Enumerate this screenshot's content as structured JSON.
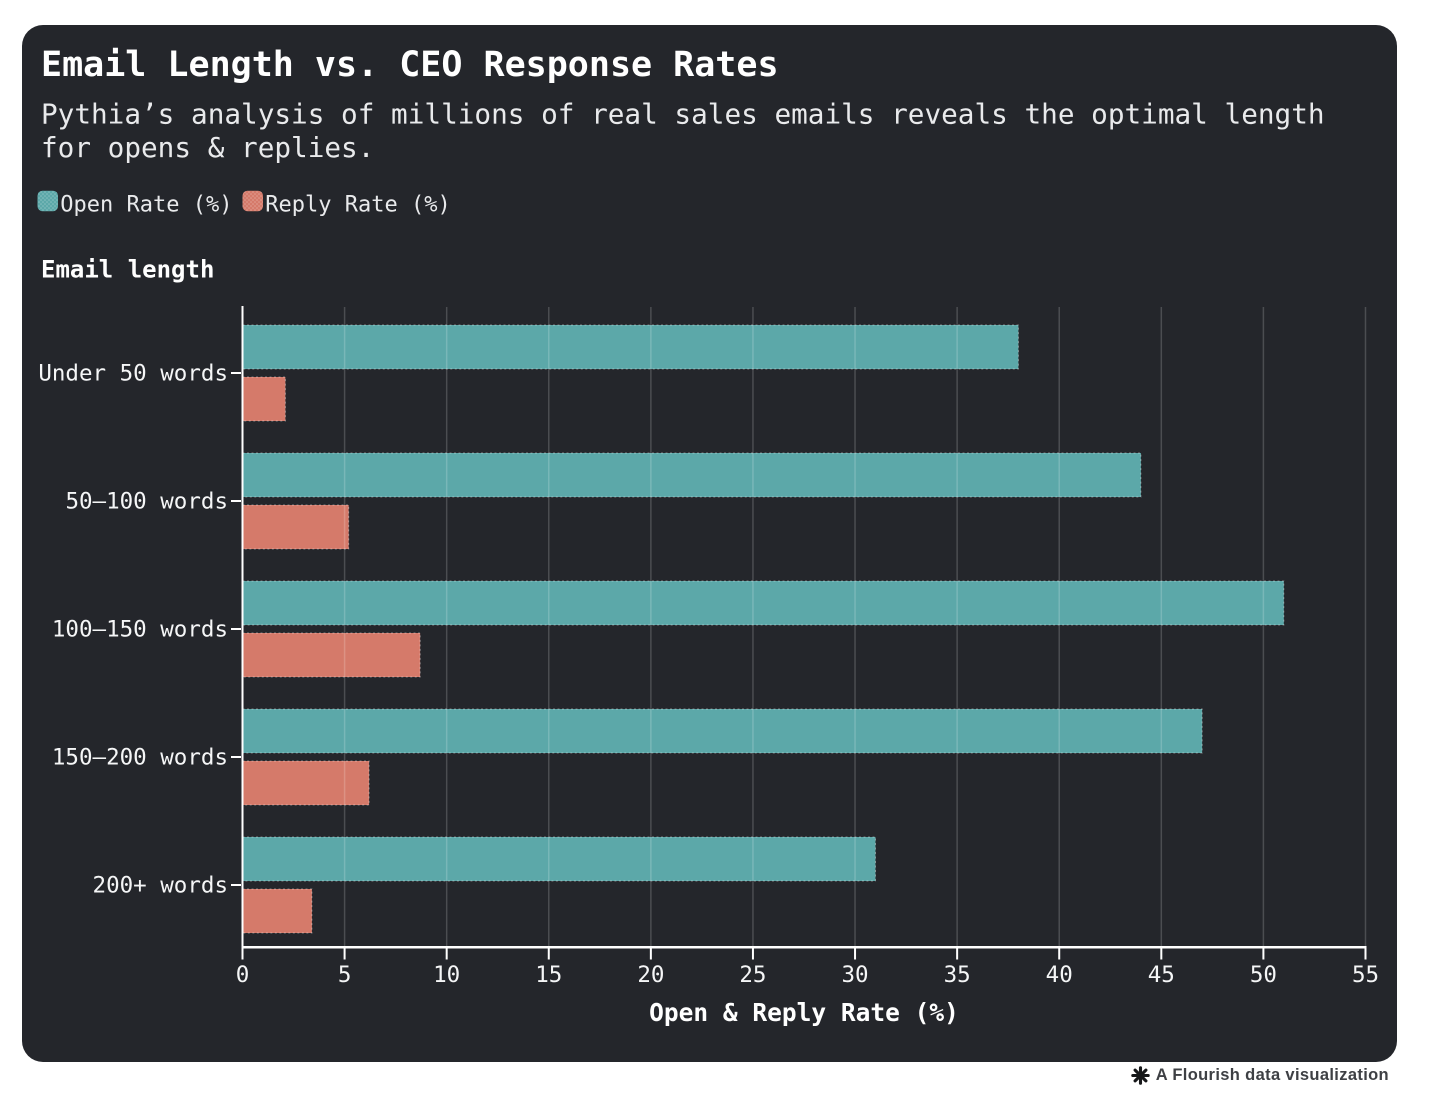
{
  "header": {
    "title": "Email Length vs. CEO Response Rates",
    "subtitle_lines": [
      "Pythia’s analysis of millions of real sales emails reveals the optimal length",
      "for opens & replies."
    ]
  },
  "legend": {
    "items": [
      {
        "label": "Open Rate (%)",
        "color": "#5ca8a9"
      },
      {
        "label": "Reply Rate (%)",
        "color": "#d57a6a"
      }
    ]
  },
  "chart_data": {
    "type": "bar",
    "orientation": "horizontal",
    "title": "Email Length vs. CEO Response Rates",
    "subtitle": "Pythia’s analysis of millions of real sales emails reveals the optimal length for opens & replies.",
    "categories": [
      "Under 50 words",
      "50–100 words",
      "100–150 words",
      "150–200 words",
      "200+ words"
    ],
    "series": [
      {
        "name": "Open Rate (%)",
        "color": "#5ca8a9",
        "values": [
          38,
          44,
          51,
          47,
          31
        ]
      },
      {
        "name": "Reply Rate (%)",
        "color": "#d57a6a",
        "values": [
          2.1,
          5.2,
          8.7,
          6.2,
          3.4
        ]
      }
    ],
    "xlabel": "Open & Reply Rate (%)",
    "ylabel": "Email length",
    "xlim": [
      0,
      55
    ],
    "xticks": [
      0,
      5,
      10,
      15,
      20,
      25,
      30,
      35,
      40,
      45,
      50,
      55
    ],
    "grid": "vertical",
    "legend_position": "top-left"
  },
  "footer": {
    "attribution": "A Flourish data visualization"
  },
  "colors": {
    "card_background": "#24262b",
    "page_background": "#ffffff",
    "open_rate_bar": "#5ca8a9",
    "reply_rate_bar": "#d57a6a",
    "axis": "#ffffff",
    "gridline": "rgba(255,255,255,0.18)",
    "title_text": "#ffffff",
    "subtitle_text": "#e9eaec",
    "attribution_text": "#3e4044"
  }
}
